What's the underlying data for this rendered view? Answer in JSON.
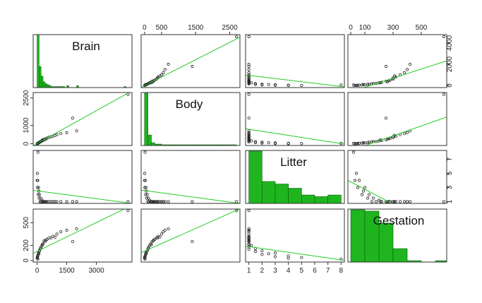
{
  "chart_data": {
    "type": "scatter-matrix",
    "variables": [
      "Brain",
      "Body",
      "Litter",
      "Gestation"
    ],
    "colors": {
      "hist_fill": "#1fb51f",
      "hist_stroke": "#0a5e0a",
      "fit_line": "#22cc22",
      "point": "#222222"
    },
    "limits": {
      "Brain": [
        -200,
        4800
      ],
      "Body": [
        -100,
        2800
      ],
      "Litter": [
        0.75,
        8.25
      ],
      "Gestation": [
        -20,
        680
      ]
    },
    "ticks": {
      "top": {
        "Body": [
          "0",
          "500",
          "1500",
          "2500"
        ],
        "Gestation": [
          "0",
          "100",
          "300",
          "500"
        ]
      },
      "bottom": {
        "Brain": [
          "0",
          "1500",
          "3000"
        ],
        "Litter": [
          "1",
          "2",
          "3",
          "4",
          "5",
          "6",
          "7",
          "8"
        ]
      },
      "left": {
        "Body": [
          "0",
          "1000",
          "2500"
        ],
        "Gestation": [
          "0",
          "200",
          "500"
        ]
      },
      "right": {
        "Brain": [
          "0",
          "2000",
          "4000"
        ],
        "Litter": [
          "1",
          "3",
          "5",
          "7"
        ]
      }
    },
    "tick_values": {
      "Brain": [
        0,
        1500,
        3000,
        2000,
        4000
      ],
      "Body": [
        0,
        500,
        1500,
        2500,
        1000
      ],
      "Litter": [
        1,
        2,
        3,
        4,
        5,
        6,
        7,
        8
      ],
      "Gestation": [
        0,
        100,
        300,
        500,
        200
      ]
    },
    "histograms": {
      "Brain": {
        "edges": [
          0,
          100,
          200,
          300,
          400,
          500,
          600,
          700,
          800,
          900,
          1000,
          1100,
          1200,
          1300,
          1400,
          1500,
          1600,
          1700,
          1800,
          1900,
          2000,
          2100,
          2200,
          2300,
          2400,
          2500,
          2600,
          2700,
          2800,
          2900,
          3000,
          3100,
          3200,
          3300,
          3400,
          3500,
          3600,
          3700,
          3800,
          3900,
          4000,
          4100,
          4200,
          4300,
          4400,
          4500
        ],
        "counts": [
          55,
          22,
          12,
          6,
          4,
          3,
          2,
          1,
          1,
          1,
          1,
          1,
          1,
          1,
          0,
          2,
          0,
          0,
          0,
          0,
          2,
          0,
          0,
          0,
          0,
          0,
          0,
          0,
          0,
          0,
          0,
          0,
          0,
          0,
          0,
          0,
          0,
          0,
          0,
          0,
          0,
          0,
          0,
          0,
          1
        ]
      },
      "Body": {
        "edges": [
          0,
          100,
          200,
          300,
          400,
          500,
          600,
          700,
          800,
          900,
          1000,
          1100,
          1200,
          1300,
          1400,
          1500,
          1600,
          1700,
          1800,
          1900,
          2000,
          2100,
          2200,
          2300,
          2400,
          2500,
          2600,
          2700
        ],
        "counts": [
          75,
          15,
          4,
          2,
          2,
          1,
          1,
          1,
          1,
          1,
          1,
          1,
          1,
          1,
          1,
          1,
          1,
          1,
          1,
          1,
          1,
          1,
          1,
          1,
          1,
          1,
          1
        ]
      },
      "Litter": {
        "edges": [
          1,
          2,
          3,
          4,
          5,
          6,
          7,
          8
        ],
        "counts": [
          62,
          26,
          23,
          18,
          10,
          8,
          10
        ]
      },
      "Gestation": {
        "edges": [
          0,
          100,
          200,
          300,
          400,
          500,
          600,
          700
        ],
        "counts": [
          39,
          38,
          29,
          10,
          1,
          0,
          1
        ]
      }
    },
    "points": {
      "Brain": [
        5,
        20,
        50,
        100,
        150,
        200,
        250,
        300,
        400,
        500,
        600,
        800,
        1000,
        1200,
        1500,
        2000,
        4600,
        10,
        30,
        70,
        120,
        180,
        260,
        350,
        450,
        700,
        900,
        1800,
        40,
        90
      ],
      "Body": [
        3,
        10,
        30,
        60,
        100,
        120,
        150,
        180,
        220,
        300,
        350,
        400,
        500,
        550,
        600,
        700,
        2700,
        5,
        20,
        40,
        80,
        110,
        200,
        250,
        270,
        380,
        450,
        1400,
        15,
        50
      ],
      "Litter": [
        4,
        3,
        2,
        1.5,
        1,
        1,
        1.2,
        1,
        1,
        1,
        1,
        1,
        1,
        1,
        1,
        1,
        1,
        5,
        4,
        3,
        2,
        1.5,
        1,
        1,
        1,
        1,
        1,
        1,
        8,
        2.5
      ],
      "Gestation": [
        30,
        50,
        80,
        120,
        150,
        180,
        200,
        220,
        250,
        280,
        300,
        320,
        350,
        380,
        400,
        420,
        660,
        40,
        60,
        100,
        130,
        160,
        210,
        260,
        270,
        300,
        310,
        250,
        20,
        90
      ]
    },
    "fits": {
      "Brain~Body": [
        -13.1,
        1.63
      ],
      "Brain~Litter": [
        1100,
        -150
      ],
      "Brain~Gestation": [
        -600,
        4.3
      ],
      "Body~Brain": [
        8,
        0.6
      ],
      "Body~Litter": [
        900,
        -112
      ],
      "Body~Gestation": [
        -380,
        2.7
      ],
      "Litter~Brain": [
        2.53,
        -0.00037
      ],
      "Litter~Body": [
        2.57,
        -0.00065
      ],
      "Litter~Gestation": [
        3.8,
        -0.0105
      ],
      "Gestation~Brain": [
        121,
        0.127
      ],
      "Gestation~Body": [
        124,
        0.2
      ],
      "Gestation~Litter": [
        209,
        -25
      ]
    }
  }
}
